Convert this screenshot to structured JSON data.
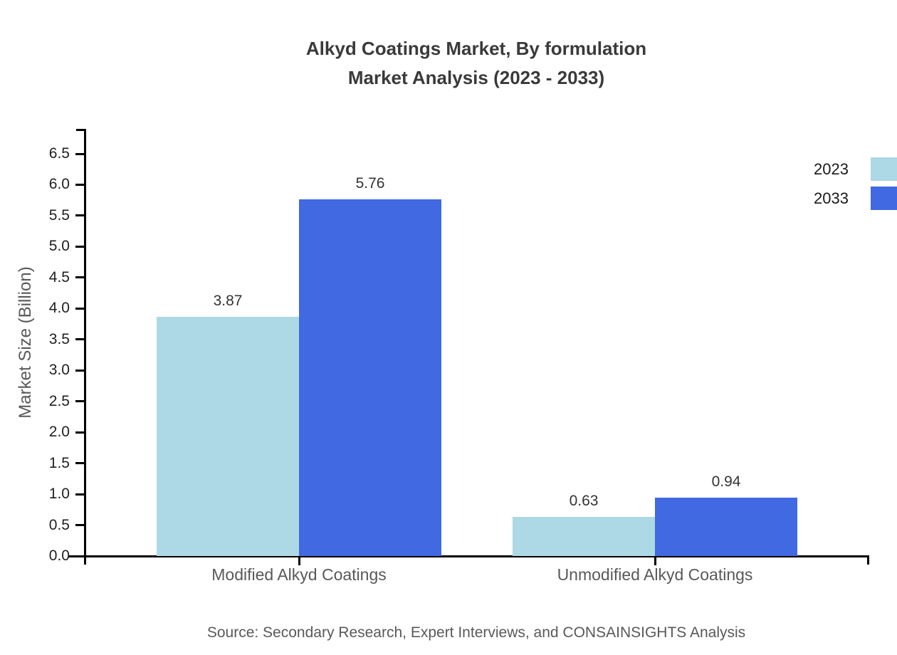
{
  "chart_data": {
    "type": "bar",
    "title": "Alkyd Coatings Market, By formulation",
    "subtitle": "Market Analysis (2023 - 2033)",
    "categories": [
      "Modified Alkyd Coatings",
      "Unmodified Alkyd Coatings"
    ],
    "series": [
      {
        "name": "2023",
        "color": "#ADD8E6",
        "values": [
          3.87,
          0.63
        ]
      },
      {
        "name": "2033",
        "color": "#4169E1",
        "values": [
          5.76,
          0.94
        ]
      }
    ],
    "xlabel": "",
    "ylabel": "Market Size (Billion)",
    "ylim": [
      0,
      6.5
    ],
    "yticks": [
      "0.0",
      "0.5",
      "1.0",
      "1.5",
      "2.0",
      "2.5",
      "3.0",
      "3.5",
      "4.0",
      "4.5",
      "5.0",
      "5.5",
      "6.0",
      "6.5"
    ],
    "value_labels": [
      "3.87",
      "5.76",
      "0.63",
      "0.94"
    ],
    "grid": false,
    "legend_position": "right-outside-clipped"
  },
  "source_note": "Source: Secondary Research, Expert Interviews, and CONSAINSIGHTS Analysis",
  "colors": {
    "background": "#FFFFFF",
    "title": "#3A3A3A",
    "tick_label": "#1F1F1F",
    "value_label": "#333333",
    "category_label": "#595959",
    "axis": "#000000",
    "series_2023": "#ADD8E6",
    "series_2033": "#4169E1"
  }
}
